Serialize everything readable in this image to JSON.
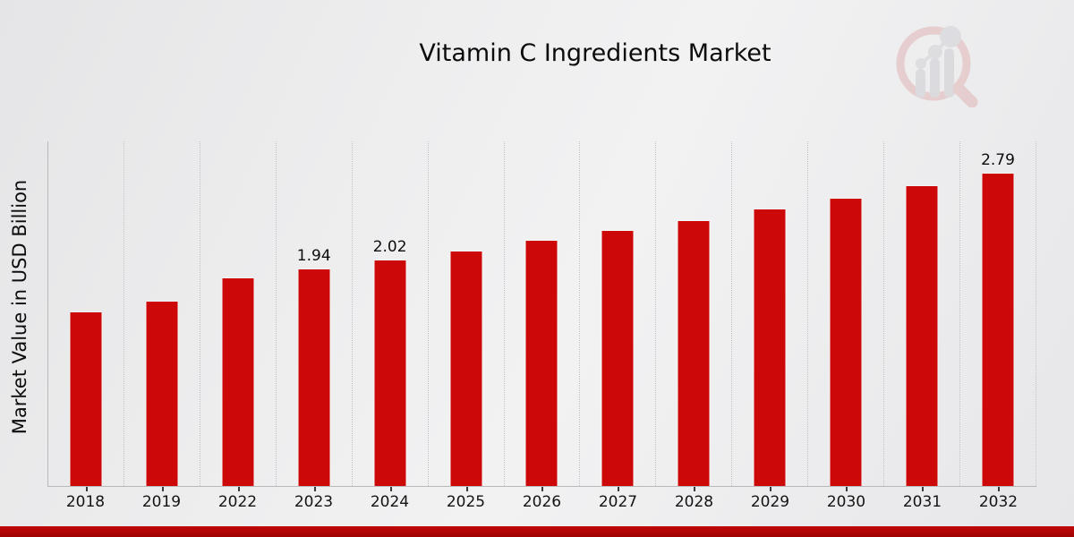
{
  "page": {
    "title": "Vitamin C Ingredients Market",
    "y_axis_title": "Market Value in USD Billion",
    "logo_icon": "magnifier-bar-chart-logo",
    "colors": {
      "bar": "#cc0808",
      "banner": "#b10404",
      "axis_line": "#b9b9bc",
      "gridline": "#c3c3c7",
      "text": "#0c0c0c",
      "background": "#ededef"
    }
  },
  "chart_data": {
    "type": "bar",
    "title": "Vitamin C Ingredients Market",
    "xlabel": "",
    "ylabel": "Market Value in USD Billion",
    "categories": [
      "2018",
      "2019",
      "2022",
      "2023",
      "2024",
      "2025",
      "2026",
      "2027",
      "2028",
      "2029",
      "2030",
      "2031",
      "2032"
    ],
    "values": [
      1.55,
      1.65,
      1.86,
      1.94,
      2.02,
      2.1,
      2.19,
      2.28,
      2.37,
      2.47,
      2.57,
      2.68,
      2.79
    ],
    "data_labels_shown": {
      "2023": "1.94",
      "2024": "2.02",
      "2032": "2.79"
    },
    "bar_color": "#cc0808",
    "ylim": [
      0,
      3.08
    ],
    "y_axis_ticks": "none",
    "grid": "vertical-dotted",
    "legend": "none"
  }
}
